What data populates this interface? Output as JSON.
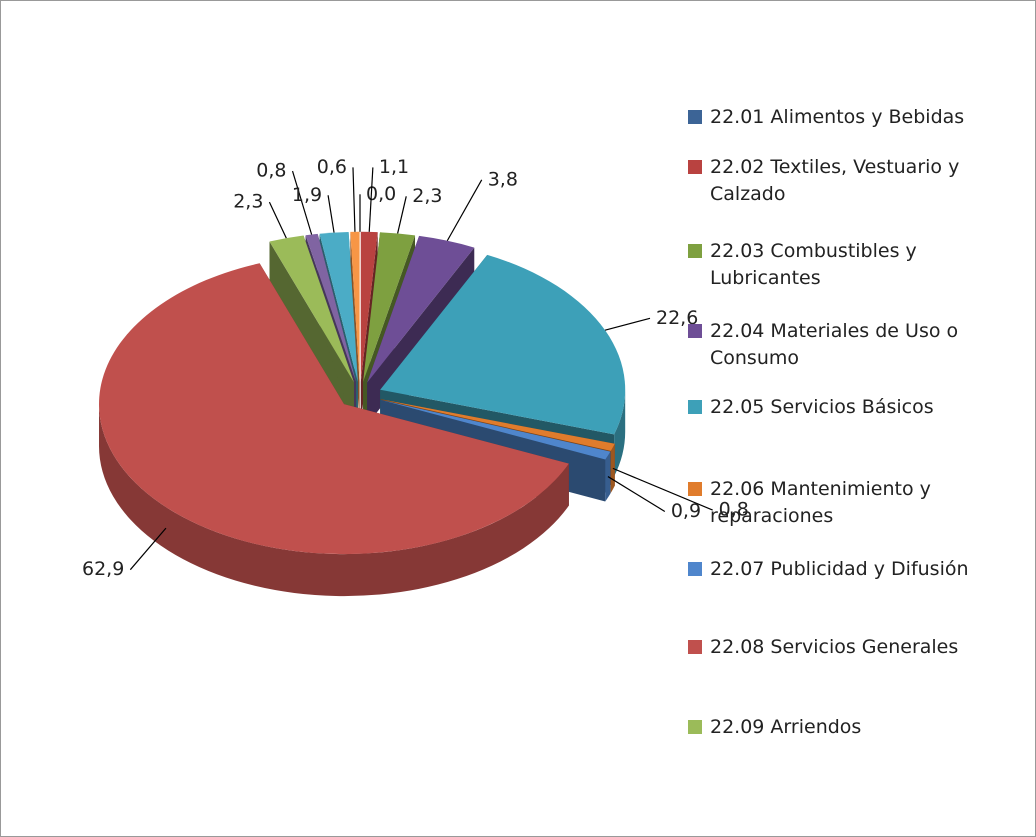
{
  "chart_data": {
    "type": "pie",
    "categories": [
      "22.01 Alimentos y Bebidas",
      "22.02 Textiles, Vestuario y Calzado",
      "22.03 Combustibles y Lubricantes",
      "22.04 Materiales de Uso o Consumo",
      "22.05 Servicios Básicos",
      "22.06 Mantenimiento y reparaciones",
      "22.07 Publicidad y Difusión",
      "22.08 Servicios Generales",
      "22.09 Arriendos",
      null,
      null,
      null
    ],
    "values": [
      0.0,
      1.1,
      2.3,
      3.8,
      22.6,
      0.8,
      0.9,
      62.9,
      2.3,
      0.8,
      1.9,
      0.6
    ],
    "value_labels": [
      "0,0",
      "1,1",
      "2,3",
      "3,8",
      "22,6",
      "0,8",
      "0,9",
      "62,9",
      "2,3",
      "0,8",
      "1,9",
      "0,6"
    ],
    "colors": [
      "#3C6496",
      "#B94240",
      "#7EA040",
      "#6E4E96",
      "#3DA0B8",
      "#E07C2C",
      "#4F86CC",
      "#C0504D",
      "#9BBB59",
      "#8064A2",
      "#4BACC6",
      "#F79646"
    ],
    "legend": "right"
  }
}
